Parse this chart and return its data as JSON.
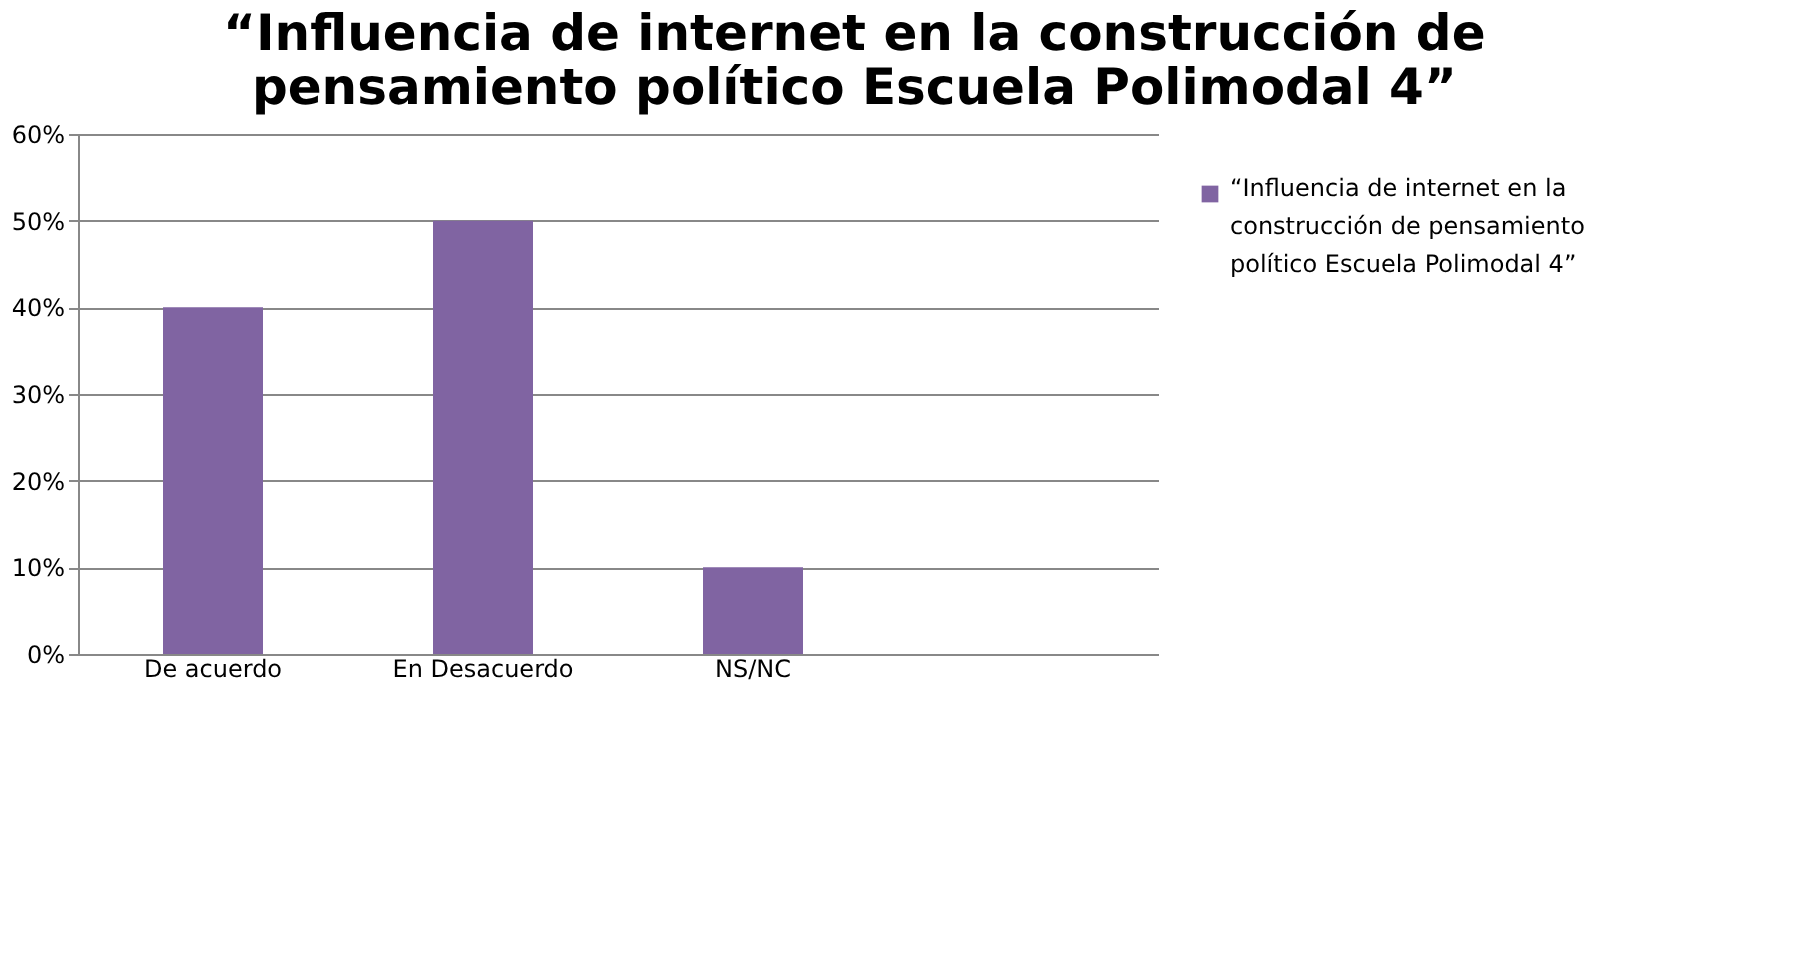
{
  "chart_data": {
    "type": "bar",
    "title": "“Influencia de internet en la construcción de pensamiento político Escuela Polimodal 4”",
    "categories": [
      "De acuerdo",
      "En Desacuerdo",
      "NS/NC",
      null
    ],
    "series": [
      {
        "name": "“Influencia de internet en la construcción de pensamiento político Escuela Polimodal 4”",
        "color": "#8064a2",
        "values": [
          40,
          50,
          10,
          null
        ]
      }
    ],
    "ylim": [
      0,
      60
    ],
    "yticks": [
      {
        "value": 0,
        "label": "0%"
      },
      {
        "value": 10,
        "label": "10%"
      },
      {
        "value": 20,
        "label": "20%"
      },
      {
        "value": 30,
        "label": "30%"
      },
      {
        "value": 40,
        "label": "40%"
      },
      {
        "value": 50,
        "label": "50%"
      },
      {
        "value": 60,
        "label": "60%"
      }
    ],
    "grid": "y",
    "legend": "right"
  }
}
